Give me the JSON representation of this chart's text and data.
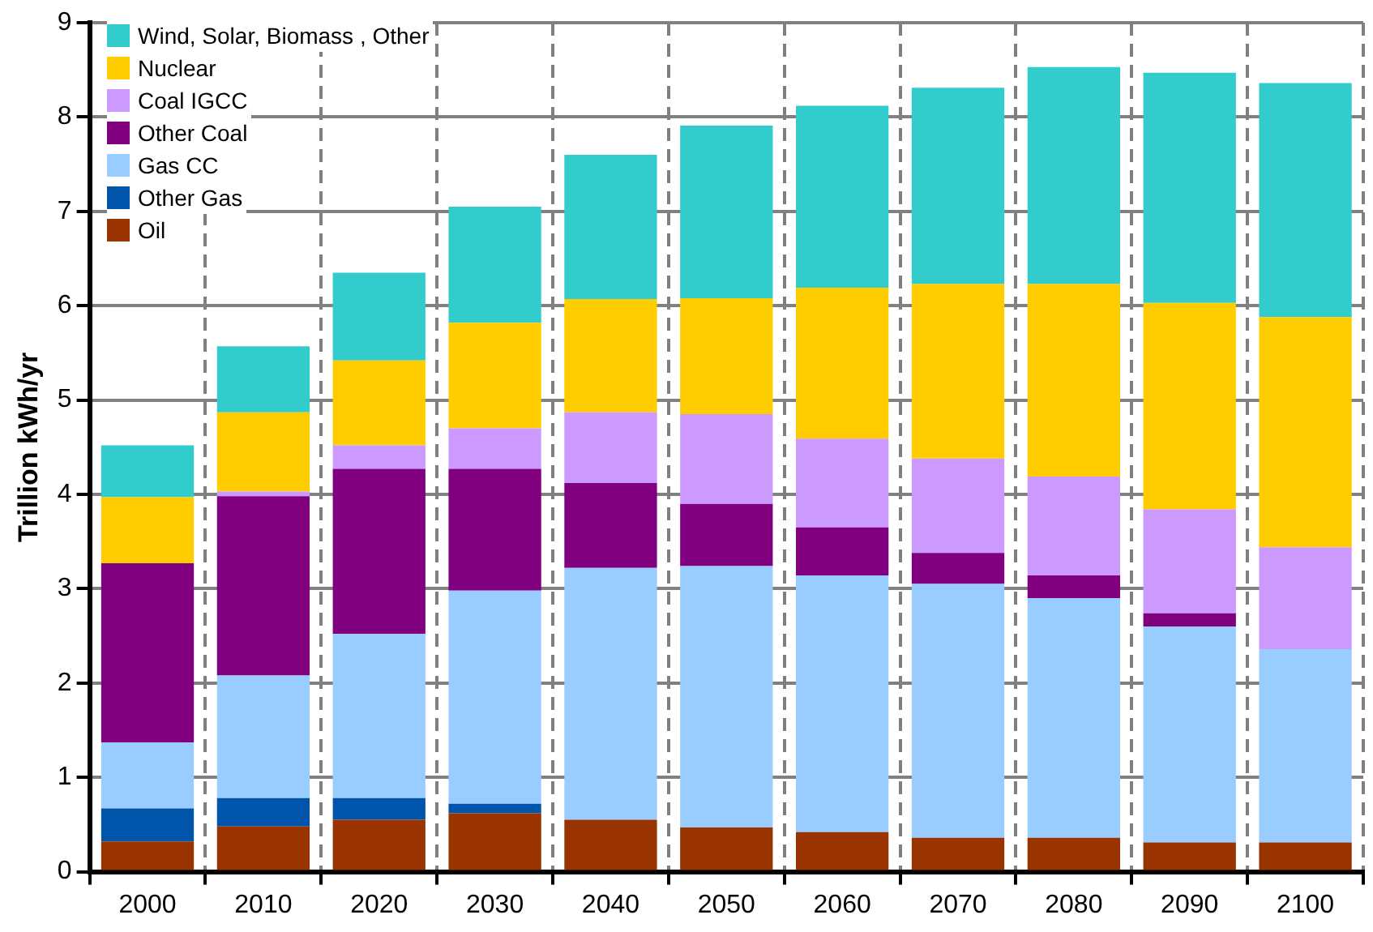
{
  "chart_data": {
    "type": "bar",
    "stacked": true,
    "ylabel": "Trillion kWh/yr",
    "categories": [
      "2000",
      "2010",
      "2020",
      "2030",
      "2040",
      "2050",
      "2060",
      "2070",
      "2080",
      "2090",
      "2100"
    ],
    "series": [
      {
        "name": "Oil",
        "color": "#993300",
        "values": [
          0.32,
          0.48,
          0.55,
          0.62,
          0.55,
          0.47,
          0.42,
          0.36,
          0.36,
          0.31,
          0.31
        ]
      },
      {
        "name": "Other Gas",
        "color": "#0055aa",
        "values": [
          0.35,
          0.3,
          0.23,
          0.1,
          0,
          0,
          0,
          0,
          0,
          0,
          0
        ]
      },
      {
        "name": "Gas CC",
        "color": "#99ccff",
        "values": [
          0.7,
          1.3,
          1.74,
          2.26,
          2.67,
          2.77,
          2.72,
          2.69,
          2.54,
          2.29,
          2.05
        ]
      },
      {
        "name": "Other Coal",
        "color": "#800080",
        "values": [
          1.9,
          1.9,
          1.75,
          1.29,
          0.9,
          0.66,
          0.51,
          0.33,
          0.24,
          0.14,
          0
        ]
      },
      {
        "name": "Coal IGCC",
        "color": "#cc99ff",
        "values": [
          0,
          0.05,
          0.25,
          0.43,
          0.75,
          0.95,
          0.94,
          1.0,
          1.05,
          1.1,
          1.08
        ]
      },
      {
        "name": "Nuclear",
        "color": "#ffcc00",
        "values": [
          0.7,
          0.84,
          0.9,
          1.12,
          1.2,
          1.23,
          1.6,
          1.85,
          2.04,
          2.19,
          2.44
        ]
      },
      {
        "name": "Wind, Solar, Biomass , Other",
        "color": "#33cccc",
        "values": [
          0.55,
          0.7,
          0.93,
          1.23,
          1.53,
          1.83,
          1.93,
          2.08,
          2.3,
          2.44,
          2.48
        ]
      }
    ],
    "ylim": [
      0,
      9
    ],
    "yticks": [
      0,
      1,
      2,
      3,
      4,
      5,
      6,
      7,
      8,
      9
    ],
    "grid": true,
    "legend": "top left"
  }
}
